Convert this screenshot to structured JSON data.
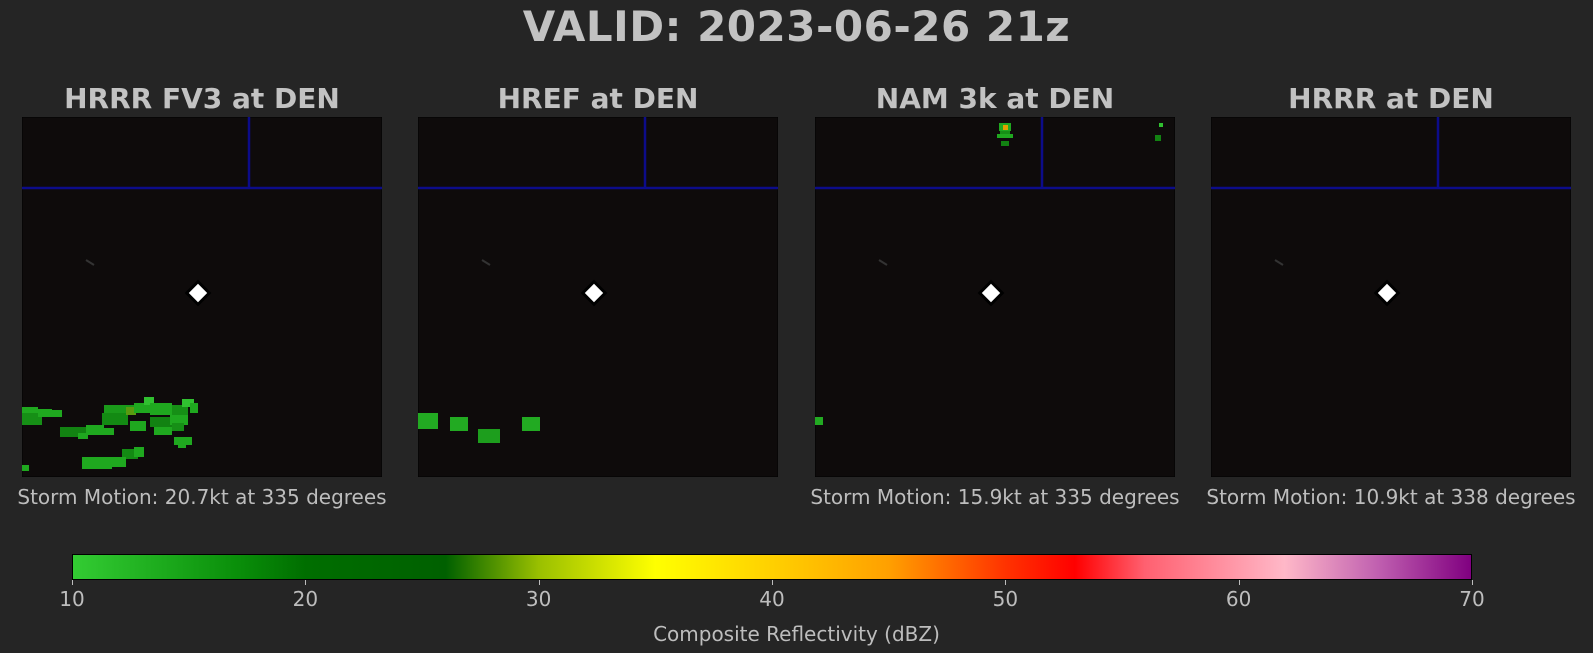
{
  "title": "VALID: 2023-06-26 21z",
  "colors": {
    "background": "#252525",
    "map_background": "#0e0b0b",
    "boundary_line": "#0c0c8a",
    "station_marker": "#ffffff"
  },
  "chart_data": [
    {
      "type": "heatmap",
      "title": "HRRR FV3 at DEN",
      "footer": "Storm Motion: 20.7kt at 335 degrees",
      "station": "DEN"
    },
    {
      "type": "heatmap",
      "title": "HREF at DEN",
      "footer": "",
      "station": "DEN"
    },
    {
      "type": "heatmap",
      "title": "NAM 3k at DEN",
      "footer": "Storm Motion: 15.9kt at 335 degrees",
      "station": "DEN"
    },
    {
      "type": "heatmap",
      "title": "HRRR at DEN",
      "footer": "Storm Motion: 10.9kt at 338 degrees",
      "station": "DEN"
    }
  ],
  "colorbar": {
    "label": "Composite Reflectivity (dBZ)",
    "min": 10,
    "max": 70,
    "ticks": [
      "10",
      "20",
      "30",
      "40",
      "50",
      "60",
      "70"
    ],
    "stops": [
      {
        "value": 10,
        "color": "#33cc33"
      },
      {
        "value": 17,
        "color": "#0a8f0a"
      },
      {
        "value": 20,
        "color": "#006e00"
      },
      {
        "value": 26,
        "color": "#006000"
      },
      {
        "value": 30,
        "color": "#9ac000"
      },
      {
        "value": 35,
        "color": "#ffff00"
      },
      {
        "value": 40,
        "color": "#ffd000"
      },
      {
        "value": 45,
        "color": "#ffa000"
      },
      {
        "value": 50,
        "color": "#ff3300"
      },
      {
        "value": 53,
        "color": "#ff0000"
      },
      {
        "value": 56,
        "color": "#ff6070"
      },
      {
        "value": 62,
        "color": "#ffb8c8"
      },
      {
        "value": 66,
        "color": "#c060b0"
      },
      {
        "value": 70,
        "color": "#800080"
      }
    ]
  }
}
